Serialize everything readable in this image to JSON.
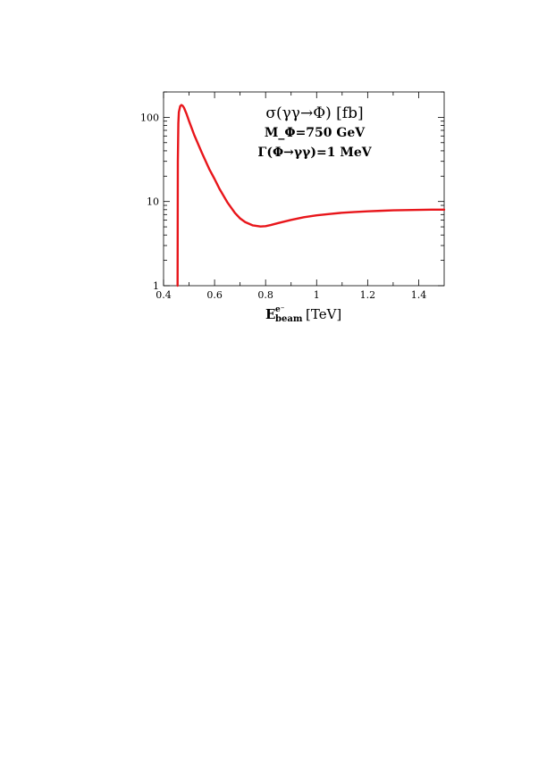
{
  "chart_data": {
    "type": "line",
    "title": "",
    "xlabel": {
      "main": "E",
      "sup": "e⁻",
      "sub": "beam",
      "unit": "[TeV]"
    },
    "ylabel": "",
    "xlim": [
      0.4,
      1.5
    ],
    "ylim": [
      1,
      200
    ],
    "yscale": "log",
    "grid": false,
    "xticks": [
      0.4,
      0.6,
      0.8,
      1.0,
      1.2,
      1.4
    ],
    "xtick_labels": [
      "0.4",
      "0.6",
      "0.8",
      "1",
      "1.2",
      "1.4"
    ],
    "yticks": [
      1,
      10,
      100
    ],
    "ytick_labels": [
      "1",
      "10",
      "100"
    ],
    "annotations": [
      "σ(γγ→Φ) [fb]",
      "M_Φ=750 GeV",
      "Γ(Φ→γγ)=1 MeV"
    ],
    "series": [
      {
        "color": "#e8161b",
        "x": [
          0.455,
          0.4555,
          0.456,
          0.458,
          0.46,
          0.465,
          0.47,
          0.475,
          0.48,
          0.49,
          0.5,
          0.52,
          0.55,
          0.58,
          0.6,
          0.62,
          0.65,
          0.68,
          0.7,
          0.72,
          0.75,
          0.78,
          0.8,
          0.82,
          0.85,
          0.9,
          0.95,
          1.0,
          1.05,
          1.1,
          1.15,
          1.2,
          1.25,
          1.3,
          1.35,
          1.4,
          1.45,
          1.5
        ],
        "y": [
          1.0,
          5.0,
          30.0,
          85.0,
          115.0,
          135.0,
          140.0,
          137.0,
          130.0,
          110.0,
          90.0,
          62.0,
          38.0,
          24.0,
          18.5,
          14.0,
          9.8,
          7.3,
          6.3,
          5.7,
          5.2,
          5.05,
          5.1,
          5.25,
          5.55,
          6.05,
          6.5,
          6.85,
          7.1,
          7.35,
          7.5,
          7.65,
          7.75,
          7.85,
          7.9,
          7.95,
          8.0,
          8.0
        ]
      }
    ]
  }
}
